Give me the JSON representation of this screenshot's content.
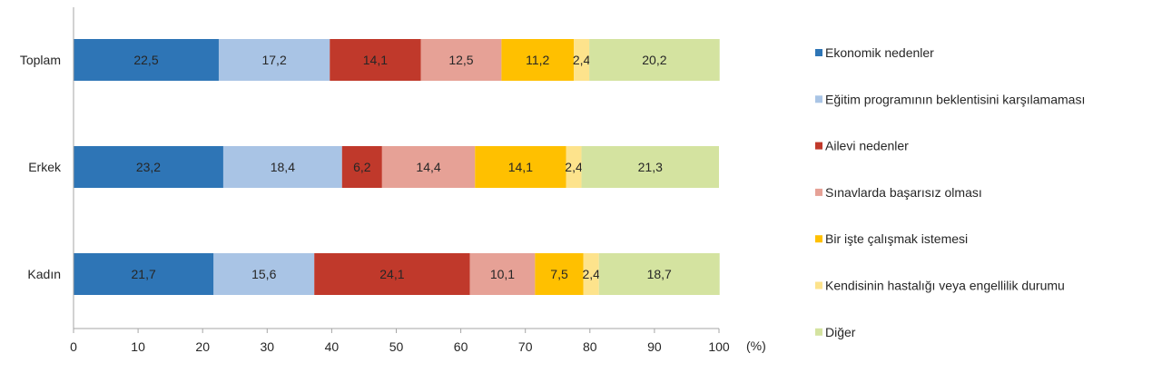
{
  "chart_data": {
    "type": "bar",
    "orientation": "horizontal",
    "stacked": true,
    "categories": [
      "Toplam",
      "Erkek",
      "Kadın"
    ],
    "series": [
      {
        "name": "Ekonomik nedenler",
        "color": "#2e75b6",
        "values": [
          22.5,
          23.2,
          21.7
        ],
        "labels": [
          "22,5",
          "23,2",
          "21,7"
        ]
      },
      {
        "name": "Eğitim programının beklentisini karşılamaması",
        "color": "#a9c4e5",
        "values": [
          17.2,
          18.4,
          15.6
        ],
        "labels": [
          "17,2",
          "18,4",
          "15,6"
        ]
      },
      {
        "name": "Ailevi nedenler",
        "color": "#c0392b",
        "values": [
          14.1,
          6.2,
          24.1
        ],
        "labels": [
          "14,1",
          "6,2",
          "24,1"
        ]
      },
      {
        "name": "Sınavlarda başarısız olması",
        "color": "#e6a196",
        "values": [
          12.5,
          14.4,
          10.1
        ],
        "labels": [
          "12,5",
          "14,4",
          "10,1"
        ]
      },
      {
        "name": "Bir işte çalışmak istemesi",
        "color": "#ffc000",
        "values": [
          11.2,
          14.1,
          7.5
        ],
        "labels": [
          "11,2",
          "14,1",
          "7,5"
        ]
      },
      {
        "name": "Kendisinin hastalığı veya engellilik durumu",
        "color": "#fde38c",
        "values": [
          2.4,
          2.4,
          2.4
        ],
        "labels": [
          "2,4",
          "2,4",
          "2,4"
        ]
      },
      {
        "name": "Diğer",
        "color": "#d4e3a0",
        "values": [
          20.2,
          21.3,
          18.7
        ],
        "labels": [
          "20,2",
          "21,3",
          "18,7"
        ]
      }
    ],
    "x_ticks": [
      "0",
      "10",
      "20",
      "30",
      "40",
      "50",
      "60",
      "70",
      "80",
      "90",
      "100"
    ],
    "xlim": [
      0,
      100
    ],
    "x_unit": "(%)",
    "legend_position": "right",
    "grid": false
  }
}
